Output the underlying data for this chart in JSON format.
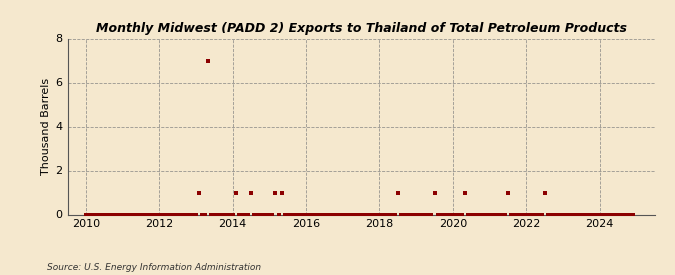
{
  "title": "Monthly Midwest (PADD 2) Exports to Thailand of Total Petroleum Products",
  "ylabel": "Thousand Barrels",
  "source": "Source: U.S. Energy Information Administration",
  "background_color": "#f5e8ce",
  "plot_bg_color": "#f5e8ce",
  "marker_color": "#8b0000",
  "marker_size": 5,
  "xlim": [
    2009.5,
    2025.5
  ],
  "ylim": [
    0,
    8
  ],
  "yticks": [
    0,
    2,
    4,
    6,
    8
  ],
  "xticks": [
    2010,
    2012,
    2014,
    2016,
    2018,
    2020,
    2022,
    2024
  ],
  "data_points": [
    [
      2010.0,
      0
    ],
    [
      2010.083,
      0
    ],
    [
      2010.167,
      0
    ],
    [
      2010.25,
      0
    ],
    [
      2010.333,
      0
    ],
    [
      2010.417,
      0
    ],
    [
      2010.5,
      0
    ],
    [
      2010.583,
      0
    ],
    [
      2010.667,
      0
    ],
    [
      2010.75,
      0
    ],
    [
      2010.833,
      0
    ],
    [
      2010.917,
      0
    ],
    [
      2011.0,
      0
    ],
    [
      2011.083,
      0
    ],
    [
      2011.167,
      0
    ],
    [
      2011.25,
      0
    ],
    [
      2011.333,
      0
    ],
    [
      2011.417,
      0
    ],
    [
      2011.5,
      0
    ],
    [
      2011.583,
      0
    ],
    [
      2011.667,
      0
    ],
    [
      2011.75,
      0
    ],
    [
      2011.833,
      0
    ],
    [
      2011.917,
      0
    ],
    [
      2012.0,
      0
    ],
    [
      2012.083,
      0
    ],
    [
      2012.167,
      0
    ],
    [
      2012.25,
      0
    ],
    [
      2012.333,
      0
    ],
    [
      2012.417,
      0
    ],
    [
      2012.5,
      0
    ],
    [
      2012.583,
      0
    ],
    [
      2012.667,
      0
    ],
    [
      2012.75,
      0
    ],
    [
      2012.833,
      0
    ],
    [
      2012.917,
      0
    ],
    [
      2013.0,
      0
    ],
    [
      2013.083,
      1
    ],
    [
      2013.167,
      0
    ],
    [
      2013.25,
      0
    ],
    [
      2013.333,
      7
    ],
    [
      2013.417,
      0
    ],
    [
      2013.5,
      0
    ],
    [
      2013.583,
      0
    ],
    [
      2013.667,
      0
    ],
    [
      2013.75,
      0
    ],
    [
      2013.833,
      0
    ],
    [
      2013.917,
      0
    ],
    [
      2014.0,
      0
    ],
    [
      2014.083,
      1
    ],
    [
      2014.167,
      0
    ],
    [
      2014.25,
      0
    ],
    [
      2014.333,
      0
    ],
    [
      2014.417,
      0
    ],
    [
      2014.5,
      1
    ],
    [
      2014.583,
      0
    ],
    [
      2014.667,
      0
    ],
    [
      2014.75,
      0
    ],
    [
      2014.833,
      0
    ],
    [
      2014.917,
      0
    ],
    [
      2015.0,
      0
    ],
    [
      2015.083,
      0
    ],
    [
      2015.167,
      1
    ],
    [
      2015.25,
      0
    ],
    [
      2015.333,
      1
    ],
    [
      2015.417,
      0
    ],
    [
      2015.5,
      0
    ],
    [
      2015.583,
      0
    ],
    [
      2015.667,
      0
    ],
    [
      2015.75,
      0
    ],
    [
      2015.833,
      0
    ],
    [
      2015.917,
      0
    ],
    [
      2016.0,
      0
    ],
    [
      2016.083,
      0
    ],
    [
      2016.167,
      0
    ],
    [
      2016.25,
      0
    ],
    [
      2016.333,
      0
    ],
    [
      2016.417,
      0
    ],
    [
      2016.5,
      0
    ],
    [
      2016.583,
      0
    ],
    [
      2016.667,
      0
    ],
    [
      2016.75,
      0
    ],
    [
      2016.833,
      0
    ],
    [
      2016.917,
      0
    ],
    [
      2017.0,
      0
    ],
    [
      2017.083,
      0
    ],
    [
      2017.167,
      0
    ],
    [
      2017.25,
      0
    ],
    [
      2017.333,
      0
    ],
    [
      2017.417,
      0
    ],
    [
      2017.5,
      0
    ],
    [
      2017.583,
      0
    ],
    [
      2017.667,
      0
    ],
    [
      2017.75,
      0
    ],
    [
      2017.833,
      0
    ],
    [
      2017.917,
      0
    ],
    [
      2018.0,
      0
    ],
    [
      2018.083,
      0
    ],
    [
      2018.167,
      0
    ],
    [
      2018.25,
      0
    ],
    [
      2018.333,
      0
    ],
    [
      2018.417,
      0
    ],
    [
      2018.5,
      1
    ],
    [
      2018.583,
      0
    ],
    [
      2018.667,
      0
    ],
    [
      2018.75,
      0
    ],
    [
      2018.833,
      0
    ],
    [
      2018.917,
      0
    ],
    [
      2019.0,
      0
    ],
    [
      2019.083,
      0
    ],
    [
      2019.167,
      0
    ],
    [
      2019.25,
      0
    ],
    [
      2019.333,
      0
    ],
    [
      2019.417,
      0
    ],
    [
      2019.5,
      1
    ],
    [
      2019.583,
      0
    ],
    [
      2019.667,
      0
    ],
    [
      2019.75,
      0
    ],
    [
      2019.833,
      0
    ],
    [
      2019.917,
      0
    ],
    [
      2020.0,
      0
    ],
    [
      2020.083,
      0
    ],
    [
      2020.167,
      0
    ],
    [
      2020.25,
      0
    ],
    [
      2020.333,
      1
    ],
    [
      2020.417,
      0
    ],
    [
      2020.5,
      0
    ],
    [
      2020.583,
      0
    ],
    [
      2020.667,
      0
    ],
    [
      2020.75,
      0
    ],
    [
      2020.833,
      0
    ],
    [
      2020.917,
      0
    ],
    [
      2021.0,
      0
    ],
    [
      2021.083,
      0
    ],
    [
      2021.167,
      0
    ],
    [
      2021.25,
      0
    ],
    [
      2021.333,
      0
    ],
    [
      2021.417,
      0
    ],
    [
      2021.5,
      1
    ],
    [
      2021.583,
      0
    ],
    [
      2021.667,
      0
    ],
    [
      2021.75,
      0
    ],
    [
      2021.833,
      0
    ],
    [
      2021.917,
      0
    ],
    [
      2022.0,
      0
    ],
    [
      2022.083,
      0
    ],
    [
      2022.167,
      0
    ],
    [
      2022.25,
      0
    ],
    [
      2022.333,
      0
    ],
    [
      2022.417,
      0
    ],
    [
      2022.5,
      1
    ],
    [
      2022.583,
      0
    ],
    [
      2022.667,
      0
    ],
    [
      2022.75,
      0
    ],
    [
      2022.833,
      0
    ],
    [
      2022.917,
      0
    ],
    [
      2023.0,
      0
    ],
    [
      2023.083,
      0
    ],
    [
      2023.167,
      0
    ],
    [
      2023.25,
      0
    ],
    [
      2023.333,
      0
    ],
    [
      2023.417,
      0
    ],
    [
      2023.5,
      0
    ],
    [
      2023.583,
      0
    ],
    [
      2023.667,
      0
    ],
    [
      2023.75,
      0
    ],
    [
      2023.833,
      0
    ],
    [
      2023.917,
      0
    ],
    [
      2024.0,
      0
    ],
    [
      2024.083,
      0
    ],
    [
      2024.167,
      0
    ],
    [
      2024.25,
      0
    ],
    [
      2024.333,
      0
    ],
    [
      2024.417,
      0
    ],
    [
      2024.5,
      0
    ],
    [
      2024.583,
      0
    ],
    [
      2024.667,
      0
    ],
    [
      2024.75,
      0
    ],
    [
      2024.833,
      0
    ],
    [
      2024.917,
      0
    ]
  ]
}
